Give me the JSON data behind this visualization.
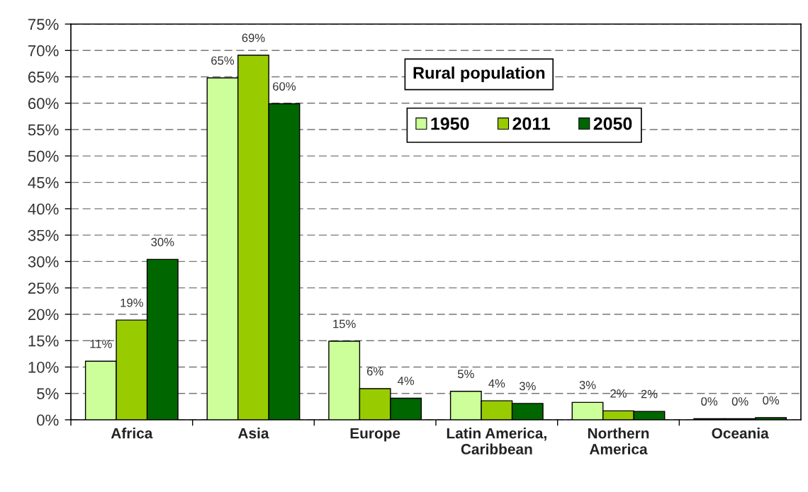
{
  "chart_data": {
    "type": "bar",
    "title": "Rural population",
    "categories": [
      "Africa",
      "Asia",
      "Europe",
      "Latin America,\nCaribbean",
      "Northern\nAmerica",
      "Oceania"
    ],
    "series": [
      {
        "name": "1950",
        "color": "#ccff99",
        "values": [
          11.1,
          64.8,
          14.9,
          5.4,
          3.3,
          0.2
        ],
        "value_labels": [
          "11%",
          "65%",
          "15%",
          "5%",
          "3%",
          "0%"
        ]
      },
      {
        "name": "2011",
        "color": "#99cc00",
        "values": [
          18.9,
          69.1,
          5.9,
          3.6,
          1.7,
          0.2
        ],
        "value_labels": [
          "19%",
          "69%",
          "6%",
          "4%",
          "2%",
          "0%"
        ]
      },
      {
        "name": "2050",
        "color": "#006600",
        "values": [
          30.4,
          59.9,
          4.1,
          3.1,
          1.6,
          0.4
        ],
        "value_labels": [
          "30%",
          "60%",
          "4%",
          "3%",
          "2%",
          "0%"
        ]
      }
    ],
    "ylim": [
      0,
      75
    ],
    "yticks": [
      {
        "value": 0,
        "label": "0%"
      },
      {
        "value": 5,
        "label": "5%"
      },
      {
        "value": 10,
        "label": "10%"
      },
      {
        "value": 15,
        "label": "15%"
      },
      {
        "value": 20,
        "label": "20%"
      },
      {
        "value": 25,
        "label": "25%"
      },
      {
        "value": 30,
        "label": "30%"
      },
      {
        "value": 35,
        "label": "35%"
      },
      {
        "value": 40,
        "label": "40%"
      },
      {
        "value": 45,
        "label": "45%"
      },
      {
        "value": 50,
        "label": "50%"
      },
      {
        "value": 55,
        "label": "55%"
      },
      {
        "value": 60,
        "label": "60%"
      },
      {
        "value": 65,
        "label": "65%"
      },
      {
        "value": 70,
        "label": "70%"
      },
      {
        "value": 75,
        "label": "75%"
      }
    ],
    "grid": "y",
    "legend": "top"
  }
}
